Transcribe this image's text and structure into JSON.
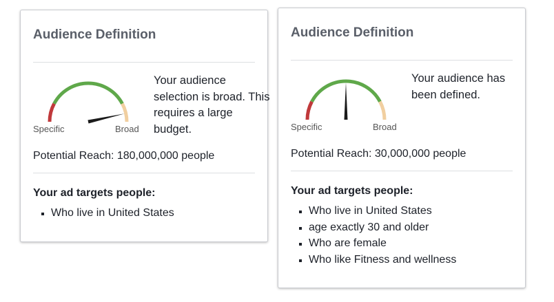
{
  "colors": {
    "specific": "#c0393b",
    "mid": "#5fa84a",
    "broad": "#f1cfa0",
    "needle": "#1b1b1b"
  },
  "cards": [
    {
      "title": "Audience Definition",
      "gauge": {
        "specific_label": "Specific",
        "broad_label": "Broad",
        "level": 0.93
      },
      "description": "Your audience selection is broad. This requires a large budget.",
      "reach": "Potential Reach: 180,000,000 people",
      "targets_heading": "Your ad targets people:",
      "targets": [
        "Who live in United States"
      ]
    },
    {
      "title": "Audience Definition",
      "gauge": {
        "specific_label": "Specific",
        "broad_label": "Broad",
        "level": 0.5
      },
      "description": "Your audience has been defined.",
      "reach": "Potential Reach: 30,000,000 people",
      "targets_heading": "Your ad targets people:",
      "targets": [
        "Who live in United States",
        "age exactly 30 and older",
        "Who are female",
        "Who like Fitness and wellness"
      ]
    }
  ]
}
